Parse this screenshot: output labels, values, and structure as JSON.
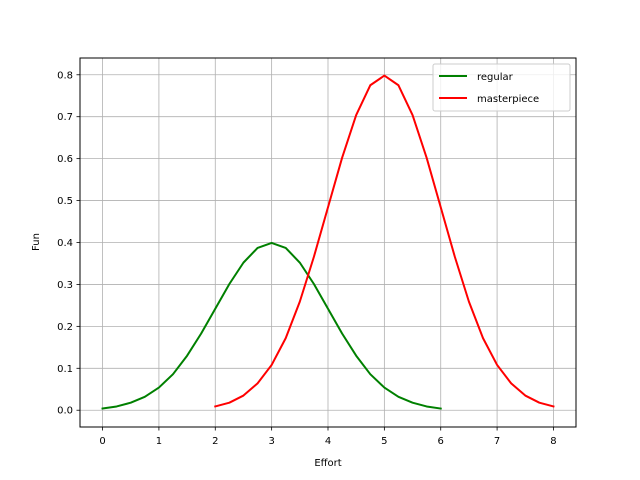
{
  "chart_data": {
    "type": "line",
    "title": "",
    "xlabel": "Effort",
    "ylabel": "Fun",
    "xlim": [
      -0.4,
      8.4
    ],
    "ylim": [
      -0.04,
      0.84
    ],
    "x_ticks": [
      0,
      1,
      2,
      3,
      4,
      5,
      6,
      7,
      8
    ],
    "x_tick_labels": [
      "0",
      "1",
      "2",
      "3",
      "4",
      "5",
      "6",
      "7",
      "8"
    ],
    "y_ticks": [
      0.0,
      0.1,
      0.2,
      0.3,
      0.4,
      0.5,
      0.6,
      0.7,
      0.8
    ],
    "y_tick_labels": [
      "0.0",
      "0.1",
      "0.2",
      "0.3",
      "0.4",
      "0.5",
      "0.6",
      "0.7",
      "0.8"
    ],
    "grid": true,
    "legend_position": "upper right",
    "series": [
      {
        "name": "regular",
        "color": "#008000",
        "x": [
          0,
          0.25,
          0.5,
          0.75,
          1,
          1.25,
          1.5,
          1.75,
          2,
          2.25,
          2.5,
          2.75,
          3,
          3.25,
          3.5,
          3.75,
          4,
          4.25,
          4.5,
          4.75,
          5,
          5.25,
          5.5,
          5.75,
          6
        ],
        "y": [
          0.004,
          0.009,
          0.018,
          0.032,
          0.054,
          0.086,
          0.13,
          0.183,
          0.242,
          0.301,
          0.352,
          0.387,
          0.399,
          0.387,
          0.352,
          0.301,
          0.242,
          0.183,
          0.13,
          0.086,
          0.054,
          0.032,
          0.018,
          0.009,
          0.004
        ]
      },
      {
        "name": "masterpiece",
        "color": "#ff0000",
        "x": [
          2,
          2.25,
          2.5,
          2.75,
          3,
          3.25,
          3.5,
          3.75,
          4,
          4.25,
          4.5,
          4.75,
          5,
          5.25,
          5.5,
          5.75,
          6,
          6.25,
          6.5,
          6.75,
          7,
          7.25,
          7.5,
          7.75,
          8
        ],
        "y": [
          0.009,
          0.018,
          0.035,
          0.064,
          0.108,
          0.172,
          0.259,
          0.366,
          0.484,
          0.602,
          0.704,
          0.775,
          0.798,
          0.775,
          0.704,
          0.602,
          0.484,
          0.366,
          0.259,
          0.172,
          0.108,
          0.064,
          0.035,
          0.018,
          0.009
        ]
      }
    ]
  }
}
